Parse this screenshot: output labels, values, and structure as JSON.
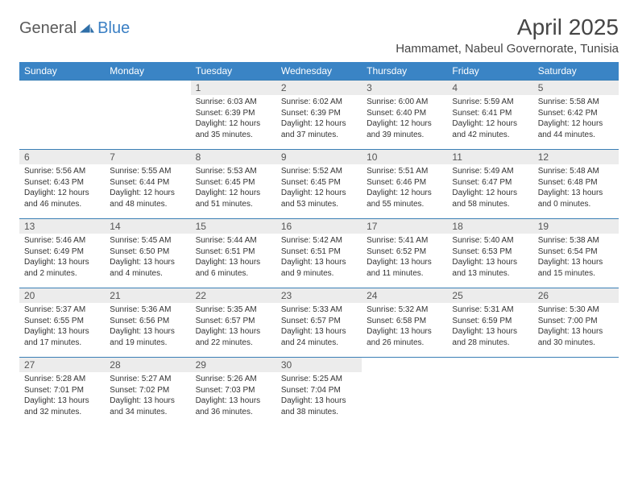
{
  "brand": {
    "part1": "General",
    "part2": "Blue"
  },
  "title": "April 2025",
  "location": "Hammamet, Nabeul Governorate, Tunisia",
  "colors": {
    "header_bg": "#3a84c5",
    "header_text": "#ffffff",
    "daynum_bg": "#ececec",
    "cell_border": "#3a7fb5",
    "body_text": "#333333",
    "title_text": "#454545",
    "brand_gray": "#5a5a5a",
    "brand_blue": "#3a7fc4",
    "page_bg": "#ffffff"
  },
  "fonts": {
    "title_pt": 28,
    "location_pt": 15,
    "header_pt": 12,
    "daynum_pt": 12,
    "body_pt": 10
  },
  "days_of_week": [
    "Sunday",
    "Monday",
    "Tuesday",
    "Wednesday",
    "Thursday",
    "Friday",
    "Saturday"
  ],
  "weeks": [
    [
      null,
      null,
      {
        "n": 1,
        "sunrise": "6:03 AM",
        "sunset": "6:39 PM",
        "daylight": "12 hours and 35 minutes."
      },
      {
        "n": 2,
        "sunrise": "6:02 AM",
        "sunset": "6:39 PM",
        "daylight": "12 hours and 37 minutes."
      },
      {
        "n": 3,
        "sunrise": "6:00 AM",
        "sunset": "6:40 PM",
        "daylight": "12 hours and 39 minutes."
      },
      {
        "n": 4,
        "sunrise": "5:59 AM",
        "sunset": "6:41 PM",
        "daylight": "12 hours and 42 minutes."
      },
      {
        "n": 5,
        "sunrise": "5:58 AM",
        "sunset": "6:42 PM",
        "daylight": "12 hours and 44 minutes."
      }
    ],
    [
      {
        "n": 6,
        "sunrise": "5:56 AM",
        "sunset": "6:43 PM",
        "daylight": "12 hours and 46 minutes."
      },
      {
        "n": 7,
        "sunrise": "5:55 AM",
        "sunset": "6:44 PM",
        "daylight": "12 hours and 48 minutes."
      },
      {
        "n": 8,
        "sunrise": "5:53 AM",
        "sunset": "6:45 PM",
        "daylight": "12 hours and 51 minutes."
      },
      {
        "n": 9,
        "sunrise": "5:52 AM",
        "sunset": "6:45 PM",
        "daylight": "12 hours and 53 minutes."
      },
      {
        "n": 10,
        "sunrise": "5:51 AM",
        "sunset": "6:46 PM",
        "daylight": "12 hours and 55 minutes."
      },
      {
        "n": 11,
        "sunrise": "5:49 AM",
        "sunset": "6:47 PM",
        "daylight": "12 hours and 58 minutes."
      },
      {
        "n": 12,
        "sunrise": "5:48 AM",
        "sunset": "6:48 PM",
        "daylight": "13 hours and 0 minutes."
      }
    ],
    [
      {
        "n": 13,
        "sunrise": "5:46 AM",
        "sunset": "6:49 PM",
        "daylight": "13 hours and 2 minutes."
      },
      {
        "n": 14,
        "sunrise": "5:45 AM",
        "sunset": "6:50 PM",
        "daylight": "13 hours and 4 minutes."
      },
      {
        "n": 15,
        "sunrise": "5:44 AM",
        "sunset": "6:51 PM",
        "daylight": "13 hours and 6 minutes."
      },
      {
        "n": 16,
        "sunrise": "5:42 AM",
        "sunset": "6:51 PM",
        "daylight": "13 hours and 9 minutes."
      },
      {
        "n": 17,
        "sunrise": "5:41 AM",
        "sunset": "6:52 PM",
        "daylight": "13 hours and 11 minutes."
      },
      {
        "n": 18,
        "sunrise": "5:40 AM",
        "sunset": "6:53 PM",
        "daylight": "13 hours and 13 minutes."
      },
      {
        "n": 19,
        "sunrise": "5:38 AM",
        "sunset": "6:54 PM",
        "daylight": "13 hours and 15 minutes."
      }
    ],
    [
      {
        "n": 20,
        "sunrise": "5:37 AM",
        "sunset": "6:55 PM",
        "daylight": "13 hours and 17 minutes."
      },
      {
        "n": 21,
        "sunrise": "5:36 AM",
        "sunset": "6:56 PM",
        "daylight": "13 hours and 19 minutes."
      },
      {
        "n": 22,
        "sunrise": "5:35 AM",
        "sunset": "6:57 PM",
        "daylight": "13 hours and 22 minutes."
      },
      {
        "n": 23,
        "sunrise": "5:33 AM",
        "sunset": "6:57 PM",
        "daylight": "13 hours and 24 minutes."
      },
      {
        "n": 24,
        "sunrise": "5:32 AM",
        "sunset": "6:58 PM",
        "daylight": "13 hours and 26 minutes."
      },
      {
        "n": 25,
        "sunrise": "5:31 AM",
        "sunset": "6:59 PM",
        "daylight": "13 hours and 28 minutes."
      },
      {
        "n": 26,
        "sunrise": "5:30 AM",
        "sunset": "7:00 PM",
        "daylight": "13 hours and 30 minutes."
      }
    ],
    [
      {
        "n": 27,
        "sunrise": "5:28 AM",
        "sunset": "7:01 PM",
        "daylight": "13 hours and 32 minutes."
      },
      {
        "n": 28,
        "sunrise": "5:27 AM",
        "sunset": "7:02 PM",
        "daylight": "13 hours and 34 minutes."
      },
      {
        "n": 29,
        "sunrise": "5:26 AM",
        "sunset": "7:03 PM",
        "daylight": "13 hours and 36 minutes."
      },
      {
        "n": 30,
        "sunrise": "5:25 AM",
        "sunset": "7:04 PM",
        "daylight": "13 hours and 38 minutes."
      },
      null,
      null,
      null
    ]
  ],
  "labels": {
    "sunrise": "Sunrise:",
    "sunset": "Sunset:",
    "daylight": "Daylight:"
  }
}
